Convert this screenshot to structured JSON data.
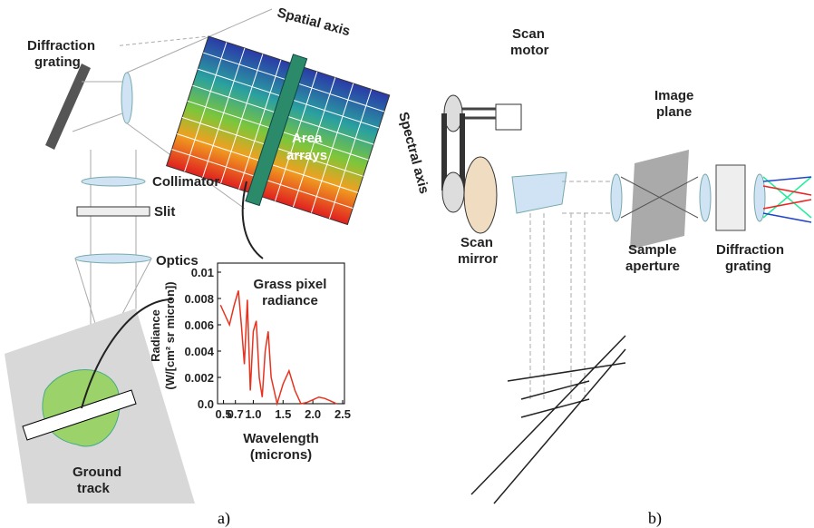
{
  "panel_a": {
    "labels": {
      "diffraction_grating": [
        "Diffraction",
        "grating"
      ],
      "spatial_axis": "Spatial axis",
      "spectral_axis": "Spectral axis",
      "area_arrays": [
        "Area",
        "arrays"
      ],
      "collimator": "Collimator",
      "slit": "Slit",
      "optics": "Optics",
      "ground_track": [
        "Ground",
        "track"
      ]
    },
    "inset": {
      "type": "line",
      "title": [
        "Grass pixel",
        "radiance"
      ],
      "x_label": [
        "Wavelength",
        "(microns)"
      ],
      "y_label": [
        "Radiance",
        "(W/[cm² sr micron])"
      ],
      "x": [
        0.45,
        0.5,
        0.6,
        0.68,
        0.75,
        0.8,
        0.85,
        0.9,
        0.95,
        1.0,
        1.05,
        1.1,
        1.15,
        1.2,
        1.25,
        1.3,
        1.4,
        1.5,
        1.6,
        1.7,
        1.8,
        1.9,
        2.0,
        2.1,
        2.2,
        2.3,
        2.4
      ],
      "values": [
        0.0075,
        0.007,
        0.006,
        0.0075,
        0.0086,
        0.006,
        0.003,
        0.0079,
        0.001,
        0.0055,
        0.0063,
        0.002,
        0.0005,
        0.004,
        0.0055,
        0.002,
        0.0,
        0.0015,
        0.0025,
        0.001,
        0.0,
        0.0001,
        0.0003,
        0.0005,
        0.0004,
        0.0002,
        0.0
      ],
      "color": "#e8321e",
      "xlim": [
        0.4,
        2.5
      ],
      "ylim": [
        0,
        0.01
      ],
      "xticks": [
        0.5,
        0.7,
        {
          "value": 1.0,
          "label": "1.0"
        },
        1.5,
        {
          "value": 2.0,
          "label": "2.0"
        },
        2.5
      ],
      "yticks": [
        {
          "value": 0,
          "label": "0.0"
        },
        0.002,
        0.004,
        0.006,
        0.008,
        0.01
      ]
    },
    "caption": "a)"
  },
  "panel_b": {
    "labels": {
      "scan_motor": [
        "Scan",
        "motor"
      ],
      "image_plane": [
        "Image",
        "plane"
      ],
      "scan_mirror": [
        "Scan",
        "mirror"
      ],
      "sample_aperture": [
        "Sample",
        "aperture"
      ],
      "diffraction_grating": [
        "Diffraction",
        "grating"
      ]
    },
    "caption": "b)"
  }
}
